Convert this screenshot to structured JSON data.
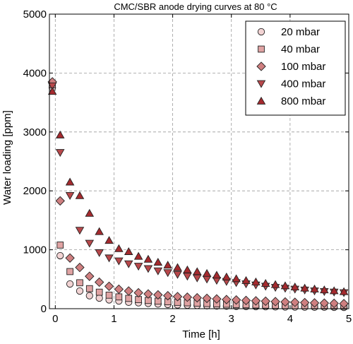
{
  "chart_data": {
    "type": "scatter",
    "title": "CMC/SBR anode drying curves at 80 °C",
    "xlabel": "Time [h]",
    "ylabel": "Water loading [ppm]",
    "xlim": [
      -0.1,
      5
    ],
    "ylim": [
      0,
      5000
    ],
    "xticks": [
      0,
      1,
      2,
      3,
      4,
      5
    ],
    "yticks": [
      0,
      1000,
      2000,
      3000,
      4000,
      5000
    ],
    "grid": true,
    "legend_position": "top-right",
    "series": [
      {
        "name": "20 mbar",
        "marker": "circle",
        "color": "#f2d3d3",
        "x": [
          -0.05,
          0.083,
          0.25,
          0.417,
          0.583,
          0.75,
          0.917,
          1.083,
          1.25,
          1.417,
          1.583,
          1.75,
          1.917,
          2.083,
          2.25,
          2.417,
          2.583,
          2.75,
          2.917,
          3.083,
          3.25,
          3.417,
          3.583,
          3.75,
          3.917,
          4.083,
          4.25,
          4.417,
          4.583,
          4.75,
          4.917
        ],
        "values": [
          3750,
          900,
          420,
          300,
          220,
          180,
          150,
          130,
          110,
          100,
          90,
          80,
          72,
          65,
          60,
          55,
          50,
          47,
          44,
          41,
          38,
          36,
          34,
          32,
          30,
          28,
          27,
          26,
          25,
          24,
          23
        ]
      },
      {
        "name": "40 mbar",
        "marker": "square",
        "color": "#e0a3a3",
        "x": [
          -0.05,
          0.083,
          0.25,
          0.417,
          0.583,
          0.75,
          0.917,
          1.083,
          1.25,
          1.417,
          1.583,
          1.75,
          1.917,
          2.083,
          2.25,
          2.417,
          2.583,
          2.75,
          2.917,
          3.083,
          3.25,
          3.417,
          3.583,
          3.75,
          3.917,
          4.083,
          4.25,
          4.417,
          4.583,
          4.75,
          4.917
        ],
        "values": [
          3800,
          1080,
          630,
          440,
          340,
          280,
          230,
          200,
          175,
          155,
          140,
          128,
          118,
          108,
          100,
          94,
          88,
          82,
          77,
          72,
          68,
          64,
          61,
          58,
          55,
          52,
          50,
          48,
          46,
          44,
          42
        ]
      },
      {
        "name": "100 mbar",
        "marker": "diamond",
        "color": "#cf7f80",
        "x": [
          -0.05,
          0.083,
          0.25,
          0.417,
          0.583,
          0.75,
          0.917,
          1.083,
          1.25,
          1.417,
          1.583,
          1.75,
          1.917,
          2.083,
          2.25,
          2.417,
          2.583,
          2.75,
          2.917,
          3.083,
          3.25,
          3.417,
          3.583,
          3.75,
          3.917,
          4.083,
          4.25,
          4.417,
          4.583,
          4.75,
          4.917
        ],
        "values": [
          3850,
          1830,
          860,
          700,
          550,
          450,
          380,
          330,
          300,
          270,
          250,
          235,
          220,
          205,
          195,
          185,
          175,
          165,
          155,
          148,
          140,
          133,
          127,
          120,
          114,
          108,
          103,
          98,
          94,
          90,
          86
        ]
      },
      {
        "name": "400 mbar",
        "marker": "triangle-down",
        "color": "#b8484b",
        "x": [
          -0.05,
          0.083,
          0.25,
          0.417,
          0.583,
          0.75,
          0.917,
          1.083,
          1.25,
          1.417,
          1.583,
          1.75,
          1.917,
          2.083,
          2.25,
          2.417,
          2.583,
          2.75,
          2.917,
          3.083,
          3.25,
          3.417,
          3.583,
          3.75,
          3.917,
          4.083,
          4.25,
          4.417,
          4.583,
          4.75,
          4.917
        ],
        "values": [
          3780,
          2650,
          1920,
          1330,
          1110,
          950,
          860,
          810,
          760,
          720,
          680,
          640,
          610,
          580,
          550,
          520,
          500,
          480,
          460,
          440,
          420,
          400,
          380,
          360,
          345,
          330,
          315,
          300,
          290,
          280,
          270
        ]
      },
      {
        "name": "800 mbar",
        "marker": "triangle-up",
        "color": "#a52a2e",
        "x": [
          -0.05,
          0.083,
          0.25,
          0.417,
          0.583,
          0.75,
          0.917,
          1.083,
          1.25,
          1.417,
          1.583,
          1.75,
          1.917,
          2.083,
          2.25,
          2.417,
          2.583,
          2.75,
          2.917,
          3.083,
          3.25,
          3.417,
          3.583,
          3.75,
          3.917,
          4.083,
          4.25,
          4.417,
          4.583,
          4.75,
          4.917
        ],
        "values": [
          3690,
          2950,
          2150,
          1920,
          1620,
          1310,
          1160,
          1020,
          970,
          890,
          840,
          790,
          740,
          700,
          660,
          630,
          600,
          570,
          540,
          510,
          480,
          455,
          430,
          410,
          390,
          370,
          350,
          335,
          320,
          305,
          290
        ]
      }
    ]
  }
}
